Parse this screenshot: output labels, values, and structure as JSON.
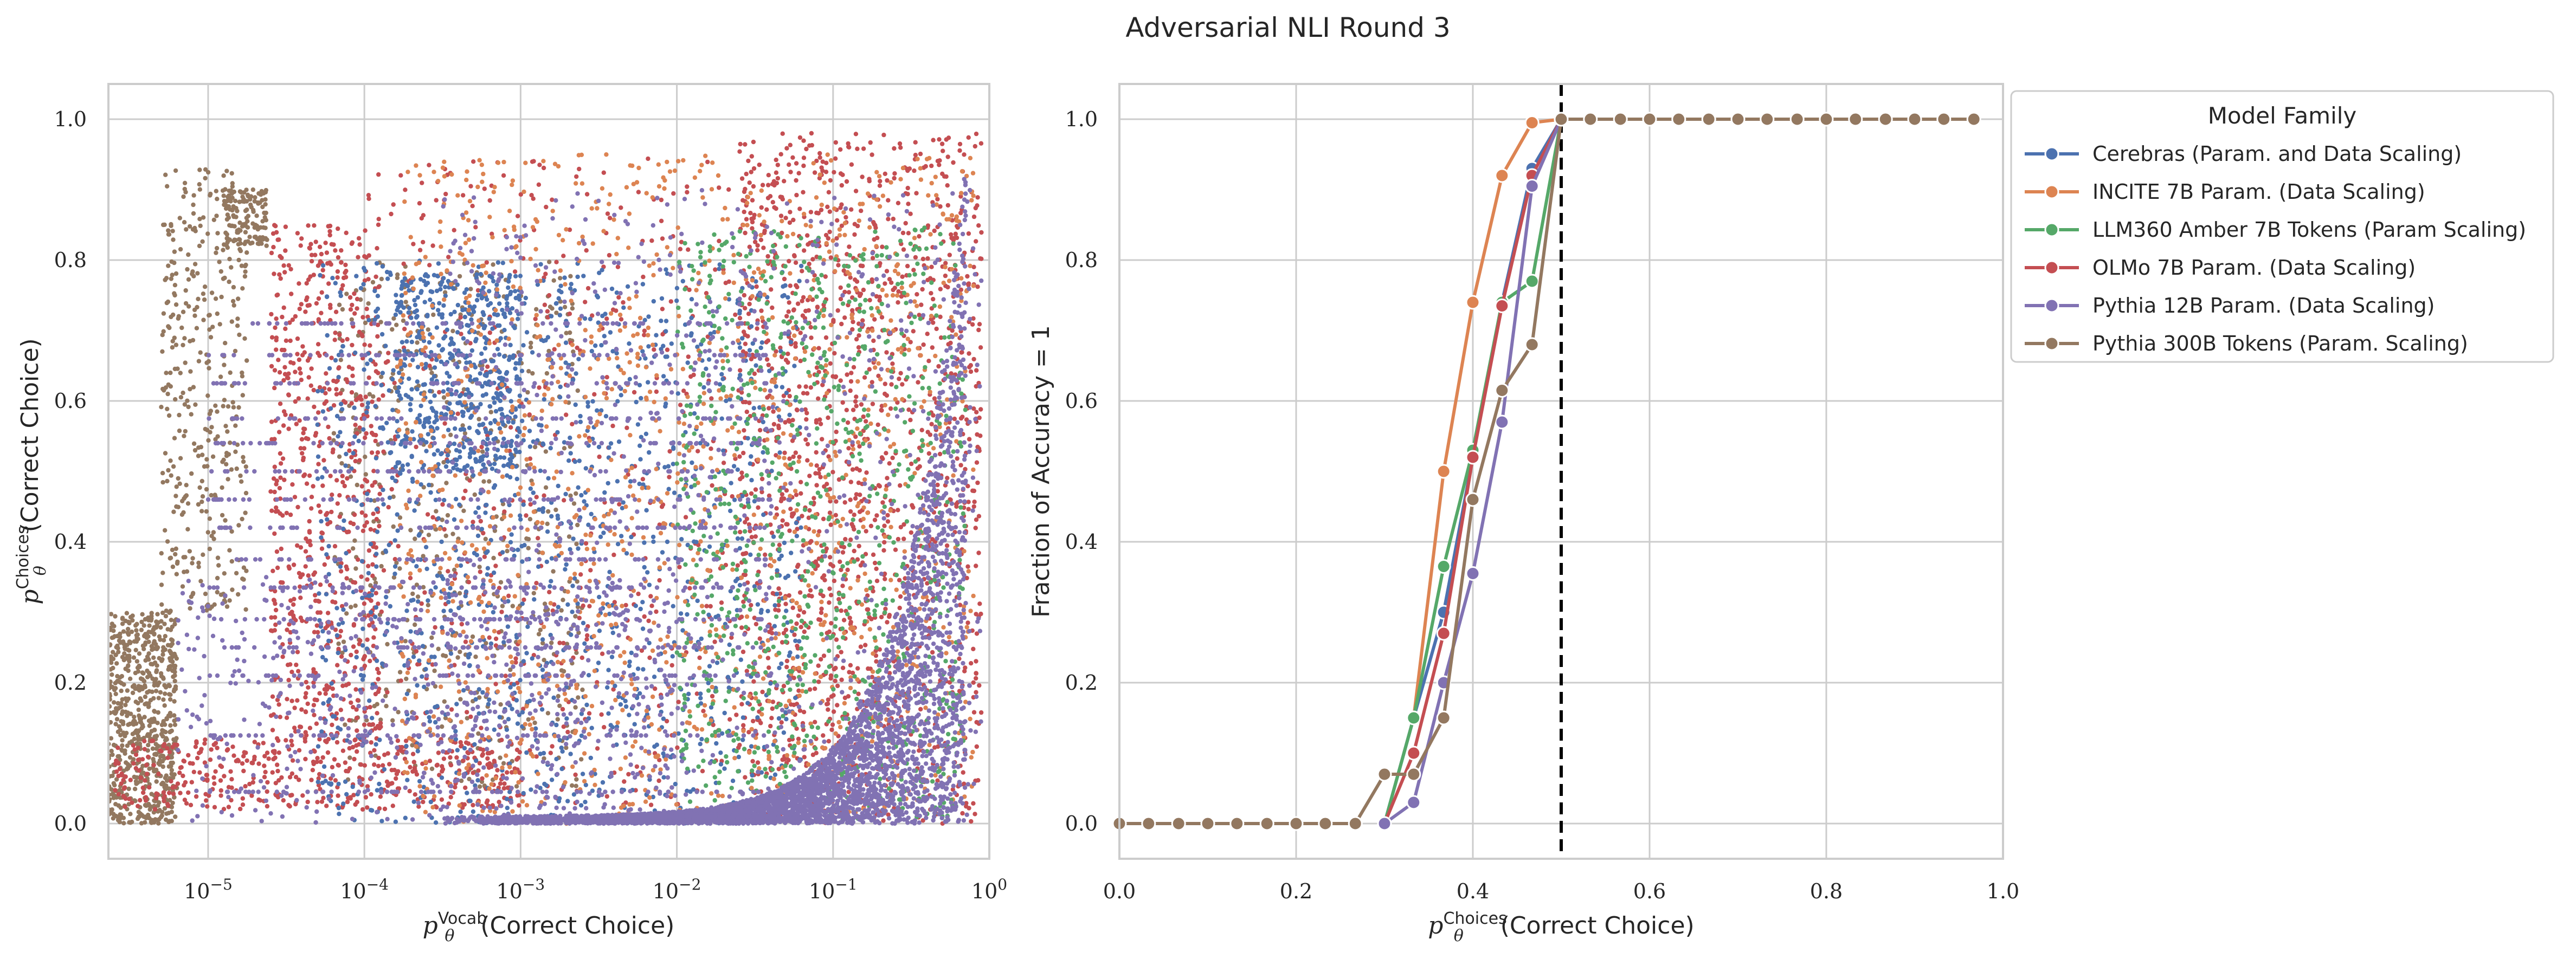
{
  "figure_title": "Adversarial NLI Round 3",
  "colors": {
    "Cerebras": "#4c72b0",
    "INCITE": "#dd8452",
    "LLM360": "#55a868",
    "OLMo": "#c44e52",
    "Pythia12B": "#8172b3",
    "Pythia300B": "#937860"
  },
  "chart_data": [
    {
      "type": "scatter",
      "xlabel": "(Correct Choice)",
      "xlabel_symbol": "p",
      "xlabel_sub": "θ",
      "xlabel_sup": "Vocab",
      "ylabel": "(Correct Choice)",
      "ylabel_symbol": "p",
      "ylabel_sub": "θ",
      "ylabel_sup": "Choices",
      "xscale": "log",
      "xlim": [
        2.3e-06,
        1.0
      ],
      "ylim": [
        -0.05,
        1.05
      ],
      "grid": true,
      "xticks": [
        {
          "value": 1e-05,
          "base": "10",
          "exp": "−5"
        },
        {
          "value": 0.0001,
          "base": "10",
          "exp": "−4"
        },
        {
          "value": 0.001,
          "base": "10",
          "exp": "−3"
        },
        {
          "value": 0.01,
          "base": "10",
          "exp": "−2"
        },
        {
          "value": 0.1,
          "base": "10",
          "exp": "−1"
        },
        {
          "value": 1,
          "base": "10",
          "exp": "0"
        }
      ],
      "yticks": [
        {
          "value": 0.0,
          "label": "0.0"
        },
        {
          "value": 0.2,
          "label": "0.2"
        },
        {
          "value": 0.4,
          "label": "0.4"
        },
        {
          "value": 0.6,
          "label": "0.6"
        },
        {
          "value": 0.8,
          "label": "0.8"
        },
        {
          "value": 1.0,
          "label": "1.0"
        }
      ],
      "point_clouds": [
        {
          "series": "Pythia 300B Tokens (Param. Scaling)",
          "color": "#937860",
          "clusters": [
            {
              "x_log": [
                -5.64,
                -5.2
              ],
              "y": [
                0.0,
                0.3
              ],
              "n": 700
            },
            {
              "x_log": [
                -5.3,
                -4.75
              ],
              "y": [
                0.3,
                0.93
              ],
              "n": 380
            },
            {
              "x_log": [
                -4.9,
                -4.62
              ],
              "y": [
                0.82,
                0.9
              ],
              "n": 120
            },
            {
              "x_log": [
                -4.2,
                -2.6
              ],
              "y": [
                0.05,
                0.8
              ],
              "n": 500
            }
          ]
        },
        {
          "series": "OLMo 7B Param. (Data Scaling)",
          "color": "#c44e52",
          "clusters": [
            {
              "x_log": [
                -5.6,
                -3.0
              ],
              "y": [
                0.02,
                0.12
              ],
              "n": 450
            },
            {
              "x_log": [
                -4.6,
                -3.9
              ],
              "y": [
                0.1,
                0.85
              ],
              "n": 650
            },
            {
              "x_log": [
                -4.0,
                -0.8
              ],
              "y": [
                0.02,
                0.95
              ],
              "n": 700
            },
            {
              "x_log": [
                -1.6,
                -0.05
              ],
              "y": [
                0.0,
                0.98
              ],
              "n": 1400
            }
          ]
        },
        {
          "series": "Cerebras (Param. and Data Scaling)",
          "color": "#4c72b0",
          "clusters": [
            {
              "x_log": [
                -4.3,
                -1.2
              ],
              "y": [
                0.0,
                0.8
              ],
              "n": 1300
            },
            {
              "x_log": [
                -3.8,
                -3.0
              ],
              "y": [
                0.5,
                0.78
              ],
              "n": 450
            }
          ]
        },
        {
          "series": "INCITE 7B Param. (Data Scaling)",
          "color": "#dd8452",
          "clusters": [
            {
              "x_log": [
                -3.8,
                -0.1
              ],
              "y": [
                0.0,
                0.95
              ],
              "n": 1300
            }
          ]
        },
        {
          "series": "LLM360 Amber 7B Tokens (Param Scaling)",
          "color": "#55a868",
          "clusters": [
            {
              "x_log": [
                -2.0,
                -0.15
              ],
              "y": [
                0.0,
                0.85
              ],
              "n": 900
            }
          ]
        },
        {
          "series": "Pythia 12B Param. (Data Scaling)",
          "color": "#8172b3",
          "clusters": [
            {
              "x_log": [
                -5.2,
                -2.0
              ],
              "y": [
                0.0,
                0.35
              ],
              "n": 500
            },
            {
              "x_log": [
                -3.5,
                -0.05
              ],
              "y": [
                0.0,
                0.9
              ],
              "n": 800
            }
          ],
          "band": true,
          "band_n": 4200,
          "bands": [
            {
              "y": 0.045
            },
            {
              "y": 0.125
            },
            {
              "y": 0.21
            },
            {
              "y": 0.25
            },
            {
              "y": 0.29
            },
            {
              "y": 0.335
            },
            {
              "y": 0.375
            },
            {
              "y": 0.42
            },
            {
              "y": 0.46
            },
            {
              "y": 0.5
            },
            {
              "y": 0.54
            },
            {
              "y": 0.575
            },
            {
              "y": 0.625
            },
            {
              "y": 0.665
            },
            {
              "y": 0.71
            }
          ]
        }
      ]
    },
    {
      "type": "line",
      "xlabel": "(Correct Choice)",
      "xlabel_symbol": "p",
      "xlabel_sub": "θ",
      "xlabel_sup": "Choices",
      "ylabel": "Fraction of Accuracy = 1",
      "xlim": [
        0.0,
        1.0
      ],
      "ylim": [
        -0.05,
        1.05
      ],
      "grid": true,
      "xticks": [
        {
          "value": 0.0,
          "label": "0.0"
        },
        {
          "value": 0.2,
          "label": "0.2"
        },
        {
          "value": 0.4,
          "label": "0.4"
        },
        {
          "value": 0.6,
          "label": "0.6"
        },
        {
          "value": 0.8,
          "label": "0.8"
        },
        {
          "value": 1.0,
          "label": "1.0"
        }
      ],
      "yticks": [
        {
          "value": 0.0,
          "label": "0.0"
        },
        {
          "value": 0.2,
          "label": "0.2"
        },
        {
          "value": 0.4,
          "label": "0.4"
        },
        {
          "value": 0.6,
          "label": "0.6"
        },
        {
          "value": 0.8,
          "label": "0.8"
        },
        {
          "value": 1.0,
          "label": "1.0"
        }
      ],
      "vline": {
        "x": 0.5,
        "style": "dashed",
        "color": "#000000"
      },
      "legend": {
        "title": "Model Family",
        "placement": "outside upper right"
      },
      "series": [
        {
          "name": "Cerebras (Param. and Data Scaling)",
          "color": "#4c72b0",
          "points": [
            [
              0.3,
              0.0
            ],
            [
              0.333,
              0.15
            ],
            [
              0.367,
              0.3
            ],
            [
              0.4,
              0.52
            ],
            [
              0.433,
              0.74
            ],
            [
              0.467,
              0.93
            ],
            [
              0.5,
              1.0
            ]
          ]
        },
        {
          "name": "INCITE 7B Param. (Data Scaling)",
          "color": "#dd8452",
          "points": [
            [
              0.333,
              0.15
            ],
            [
              0.367,
              0.5
            ],
            [
              0.4,
              0.74
            ],
            [
              0.433,
              0.92
            ],
            [
              0.467,
              0.995
            ],
            [
              0.5,
              1.0
            ]
          ]
        },
        {
          "name": "LLM360 Amber 7B Tokens (Param Scaling)",
          "color": "#55a868",
          "points": [
            [
              0.3,
              0.0
            ],
            [
              0.333,
              0.15
            ],
            [
              0.367,
              0.365
            ],
            [
              0.4,
              0.53
            ],
            [
              0.433,
              0.74
            ],
            [
              0.467,
              0.77
            ],
            [
              0.5,
              1.0
            ]
          ]
        },
        {
          "name": "OLMo 7B Param. (Data Scaling)",
          "color": "#c44e52",
          "points": [
            [
              0.3,
              0.0
            ],
            [
              0.333,
              0.1
            ],
            [
              0.367,
              0.27
            ],
            [
              0.4,
              0.52
            ],
            [
              0.433,
              0.735
            ],
            [
              0.467,
              0.92
            ],
            [
              0.5,
              1.0
            ]
          ]
        },
        {
          "name": "Pythia 12B Param. (Data Scaling)",
          "color": "#8172b3",
          "points": [
            [
              0.3,
              0.0
            ],
            [
              0.333,
              0.03
            ],
            [
              0.367,
              0.2
            ],
            [
              0.4,
              0.355
            ],
            [
              0.433,
              0.57
            ],
            [
              0.467,
              0.905
            ],
            [
              0.5,
              1.0
            ]
          ]
        },
        {
          "name": "Pythia 300B Tokens (Param. Scaling)",
          "color": "#937860",
          "points": [
            [
              0.0,
              0.0
            ],
            [
              0.033,
              0.0
            ],
            [
              0.067,
              0.0
            ],
            [
              0.1,
              0.0
            ],
            [
              0.133,
              0.0
            ],
            [
              0.167,
              0.0
            ],
            [
              0.2,
              0.0
            ],
            [
              0.233,
              0.0
            ],
            [
              0.267,
              0.0
            ],
            [
              0.3,
              0.07
            ],
            [
              0.333,
              0.07
            ],
            [
              0.367,
              0.15
            ],
            [
              0.4,
              0.46
            ],
            [
              0.433,
              0.615
            ],
            [
              0.467,
              0.68
            ],
            [
              0.5,
              1.0
            ],
            [
              0.533,
              1.0
            ],
            [
              0.567,
              1.0
            ],
            [
              0.6,
              1.0
            ],
            [
              0.633,
              1.0
            ],
            [
              0.667,
              1.0
            ],
            [
              0.7,
              1.0
            ],
            [
              0.733,
              1.0
            ],
            [
              0.767,
              1.0
            ],
            [
              0.8,
              1.0
            ],
            [
              0.833,
              1.0
            ],
            [
              0.867,
              1.0
            ],
            [
              0.9,
              1.0
            ],
            [
              0.933,
              1.0
            ],
            [
              0.967,
              1.0
            ]
          ]
        }
      ]
    }
  ]
}
